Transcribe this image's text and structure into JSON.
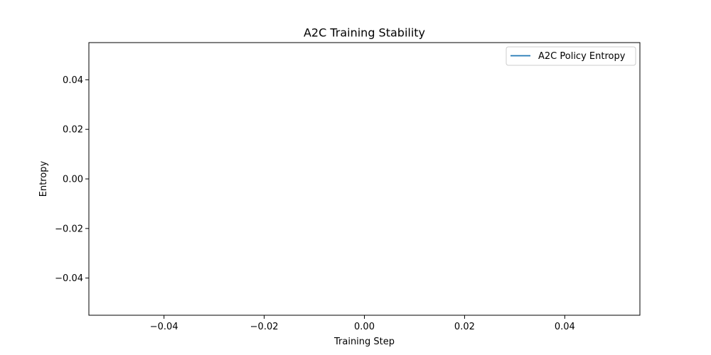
{
  "chart_data": {
    "type": "line",
    "title": "A2C Training Stability",
    "xlabel": "Training Step",
    "ylabel": "Entropy",
    "xlim": [
      -0.055,
      0.055
    ],
    "ylim": [
      -0.055,
      0.055
    ],
    "x_ticks": [
      -0.04,
      -0.02,
      0.0,
      0.02,
      0.04
    ],
    "x_tick_labels": [
      "−0.04",
      "−0.02",
      "0.00",
      "0.02",
      "0.04"
    ],
    "y_ticks": [
      0.04,
      0.02,
      0.0,
      -0.02,
      -0.04
    ],
    "y_tick_labels": [
      "0.04",
      "0.02",
      "0.00",
      "−0.02",
      "−0.04"
    ],
    "grid": false,
    "legend_position": "top-right",
    "series": [
      {
        "name": "A2C Policy Entropy",
        "color": "#1f77b4",
        "x": [],
        "y": []
      }
    ]
  }
}
